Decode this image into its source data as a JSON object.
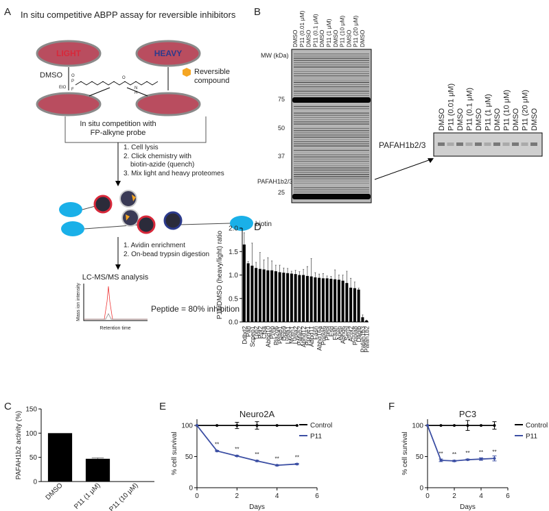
{
  "panels": [
    "A",
    "B",
    "C",
    "D",
    "E",
    "F"
  ],
  "diagram": {
    "title": "In situ competitive ABPP assay for reversible inhibitors",
    "light": "LIGHT",
    "heavy": "HEAVY",
    "control": "DMSO",
    "compound": [
      "Reversible",
      "compound"
    ],
    "probe_atoms": [
      "EtO",
      "P",
      "F",
      "O",
      "O",
      "N",
      "H"
    ],
    "competition": [
      "In situ competition with",
      "FP-alkyne probe"
    ],
    "steps_1": [
      "1. Cell lysis",
      "2. Click chemistry with",
      "biotin-azide (quench)",
      "3. Mix light and heavy proteomes"
    ],
    "biotin": "biotin",
    "steps_2": [
      "1. Avidin enrichment",
      "2. On-bead trypsin digestion"
    ],
    "analysis": "LC-MS/MS analysis",
    "result": "Peptide = 80% inhibition",
    "y_axis": "Mass ion intensity",
    "x_axis": "Retention time"
  },
  "gel": {
    "lanes": [
      "DMSO",
      "P11 (0.01 μM)",
      "DMSO",
      "P11 (0.1 μM)",
      "DMSO",
      "P11 (1 μM)",
      "DMSO",
      "P11 (10 μM)",
      "DMSO",
      "P11 (20 μM)",
      "DMSO"
    ],
    "mw_title": "MW (kDa)",
    "mw_markers": [
      "75",
      "50",
      "37",
      "25"
    ],
    "target": "PAFAH1b2/3"
  },
  "chart_data": [
    {
      "type": "bar",
      "categories": [
        "DMSO",
        "P11 (1 μM)",
        "P11 (10 μM)"
      ],
      "values": [
        100,
        47,
        0
      ],
      "errors": [
        0,
        2,
        0
      ],
      "color": "#000000",
      "ylabel": "PAFAH1b2 activity (%)",
      "ylim": [
        0,
        150
      ],
      "yticks": [
        0,
        50,
        100,
        150
      ],
      "grid": false
    },
    {
      "type": "bar",
      "categories": [
        "Ddhd2",
        "Parl",
        "Scpep1",
        "Tpp2",
        "Ppt2",
        "Ctsa",
        "Abhd10",
        "Prep",
        "Pla2g6",
        "Pgap1",
        "Dpp9",
        "Lypla1",
        "Nceh1",
        "Lypla2",
        "Pafah2",
        "Abhd12",
        "Ppme1",
        "Abhd11",
        "Fasn",
        "Abhd16a",
        "Pnpla6",
        "Prepl",
        "Esd",
        "Faah",
        "Apeh",
        "Abhd6",
        "Serhl",
        "Acot2",
        "Pnpla8",
        "Dagib",
        "Pafah1b3",
        "Pafah1b2"
      ],
      "values": [
        1.65,
        1.25,
        1.2,
        1.15,
        1.13,
        1.12,
        1.1,
        1.1,
        1.08,
        1.06,
        1.05,
        1.04,
        1.03,
        1.02,
        1.0,
        1.0,
        0.98,
        0.97,
        0.95,
        0.94,
        0.93,
        0.93,
        0.92,
        0.91,
        0.9,
        0.88,
        0.83,
        0.73,
        0.72,
        0.69,
        0.1,
        0.03
      ],
      "errors": [
        0.25,
        0.04,
        0.48,
        0.12,
        0.35,
        0.2,
        0.27,
        0.2,
        0.13,
        0.15,
        0.1,
        0.1,
        0.05,
        0.08,
        0.07,
        0.12,
        0.2,
        0.38,
        0.1,
        0.08,
        0.1,
        0.05,
        0.05,
        0.2,
        0.1,
        0.12,
        0.25,
        0.2,
        0.13,
        0.03,
        0.05,
        0.01
      ],
      "color": "#000000",
      "ylabel": "P11/DMSO (heavy/light) ratio",
      "ylim": [
        0,
        2
      ],
      "yticks": [
        {
          "value": 0,
          "label": "0.0"
        },
        0.5,
        {
          "value": 1,
          "label": "1.0"
        },
        1.5,
        {
          "value": 2,
          "label": "2.0"
        }
      ],
      "grid": false
    },
    {
      "type": "line",
      "title": "Neuro2A",
      "x": [
        0,
        1,
        2,
        3,
        4,
        5
      ],
      "xlabel": "Days",
      "ylabel": "% cell survival",
      "series": [
        {
          "name": "Control",
          "color": "#000000",
          "values": [
            100,
            100,
            100,
            100,
            100,
            100
          ],
          "errors": [
            0,
            0,
            5,
            6,
            0,
            0
          ]
        },
        {
          "name": "P11",
          "color": "#3b4ea3",
          "values": [
            100,
            59,
            51,
            43,
            36,
            38
          ],
          "errors": [
            0,
            1,
            1,
            1,
            1,
            1
          ]
        }
      ],
      "significance": [
        null,
        "**",
        "**",
        "**",
        "**",
        "**"
      ],
      "xlim": [
        0,
        6
      ],
      "xticks": [
        0,
        2,
        4,
        6
      ],
      "ylim": [
        0,
        110
      ],
      "yticks": [
        0,
        50,
        100
      ],
      "legend": "right",
      "grid": false
    },
    {
      "type": "line",
      "title": "PC3",
      "x": [
        0,
        1,
        2,
        3,
        4,
        5
      ],
      "xlabel": "Days",
      "ylabel": "% cell survival",
      "series": [
        {
          "name": "Control",
          "color": "#000000",
          "values": [
            100,
            100,
            100,
            100,
            100,
            100
          ],
          "errors": [
            0,
            0,
            0,
            8,
            0,
            6
          ]
        },
        {
          "name": "P11",
          "color": "#3b4ea3",
          "values": [
            100,
            44,
            43,
            45,
            46,
            47
          ],
          "errors": [
            0,
            2,
            1,
            1,
            2,
            4
          ]
        }
      ],
      "significance": [
        null,
        "**",
        "**",
        "**",
        "**",
        "**"
      ],
      "xlim": [
        0,
        6
      ],
      "xticks": [
        0,
        2,
        4,
        6
      ],
      "ylim": [
        0,
        110
      ],
      "yticks": [
        0,
        50,
        100
      ],
      "legend": "right",
      "grid": false
    }
  ]
}
